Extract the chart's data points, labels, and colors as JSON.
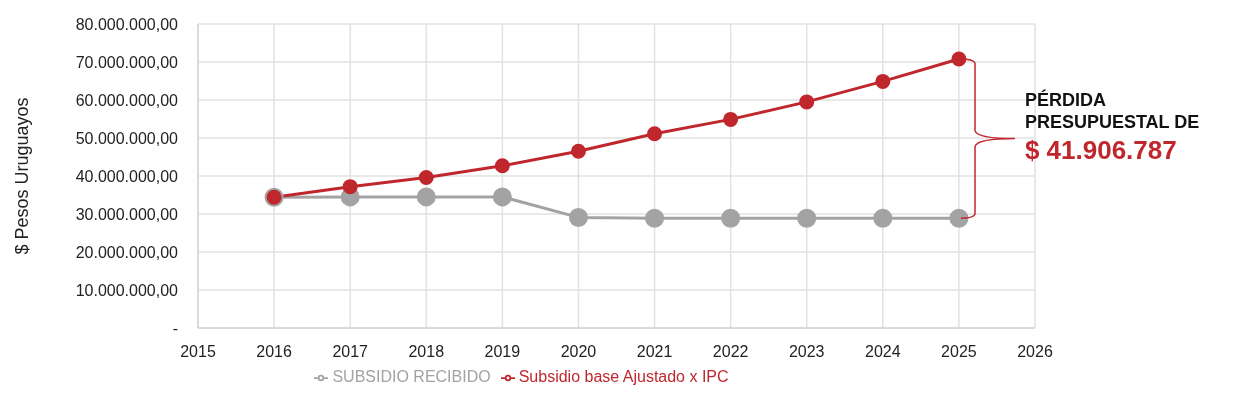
{
  "chart_data": {
    "type": "line",
    "ylabel": "$ Pesos Uruguayos",
    "x": [
      2016,
      2017,
      2018,
      2019,
      2020,
      2021,
      2022,
      2023,
      2024,
      2025
    ],
    "series": [
      {
        "name": "SUBSIDIO RECIBIDO",
        "color": "#a3a3a3",
        "values": [
          34400000,
          34500000,
          34500000,
          34500000,
          29100000,
          28900000,
          28900000,
          28900000,
          28900000,
          28900000
        ]
      },
      {
        "name": "Subsidio base Ajustado x IPC",
        "color": "#c0272d",
        "values": [
          34400000,
          37200000,
          39600000,
          42700000,
          46500000,
          51100000,
          54900000,
          59500000,
          64900000,
          70800000
        ]
      }
    ],
    "xlim": [
      2015,
      2026
    ],
    "xticks": [
      2015,
      2016,
      2017,
      2018,
      2019,
      2020,
      2021,
      2022,
      2023,
      2024,
      2025,
      2026
    ],
    "ylim": [
      0,
      80000000
    ],
    "yticks": [
      {
        "value": 0,
        "label": "-"
      },
      {
        "value": 10000000,
        "label": "10.000.000,00"
      },
      {
        "value": 20000000,
        "label": "20.000.000,00"
      },
      {
        "value": 30000000,
        "label": "30.000.000,00"
      },
      {
        "value": 40000000,
        "label": "40.000.000,00"
      },
      {
        "value": 50000000,
        "label": "50.000.000,00"
      },
      {
        "value": 60000000,
        "label": "60.000.000,00"
      },
      {
        "value": 70000000,
        "label": "70.000.000,00"
      },
      {
        "value": 80000000,
        "label": "80.000.000,00"
      }
    ],
    "annotations": [
      "PÉRDIDA PRESUPUESTAL DE",
      "$ 41.906.787"
    ],
    "grid": true,
    "legend": "bottom",
    "marker": "circle",
    "line_style": "solid"
  }
}
